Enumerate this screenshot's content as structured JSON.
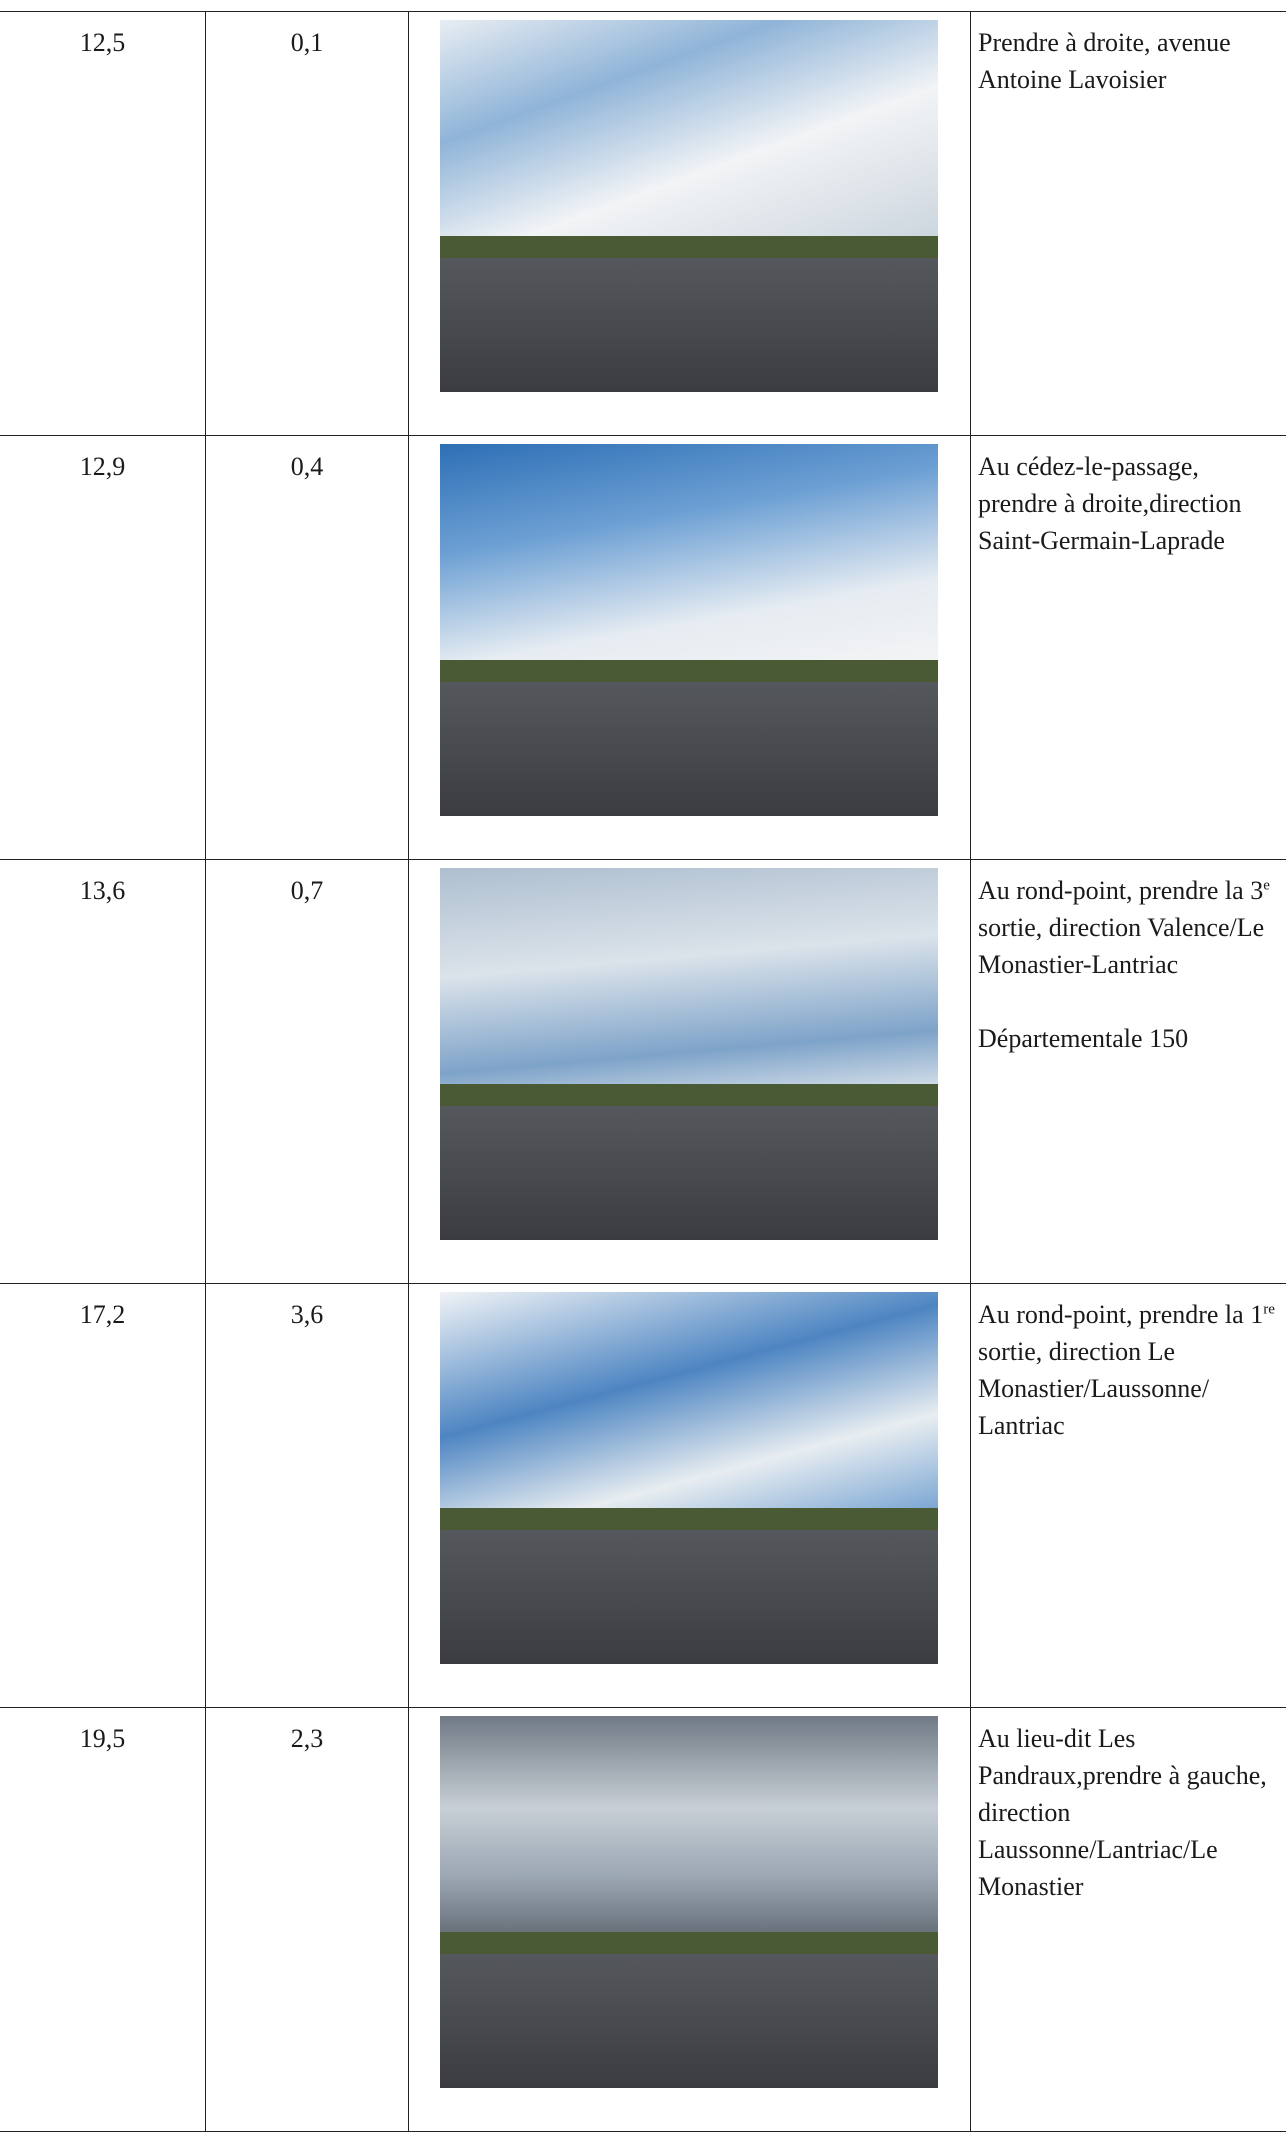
{
  "rows": [
    {
      "km": "12,5",
      "partial": "0,1",
      "instruction": [
        "Prendre à droite, avenue Antoine Lavoisier"
      ]
    },
    {
      "km": "12,9",
      "partial": "0,4",
      "instruction": [
        "Au cédez-le-passage, prendre à droite,direction Saint-Germain-Laprade"
      ]
    },
    {
      "km": "13,6",
      "partial": "0,7",
      "instruction": [
        "Au rond-point, prendre la 3",
        "e",
        " sortie, direction Valence/Le Monastier-Lantriac"
      ],
      "note": "Départementale 150"
    },
    {
      "km": "17,2",
      "partial": "3,6",
      "instruction": [
        "Au rond-point, prendre la 1",
        "re",
        " sortie, direction Le Monastier/Laussonne/ Lantriac"
      ]
    },
    {
      "km": "19,5",
      "partial": "2,3",
      "instruction": [
        "Au lieu-dit Les Pandraux,prendre à gauche, direction Laussonne/Lantriac/Le Monastier"
      ]
    }
  ]
}
